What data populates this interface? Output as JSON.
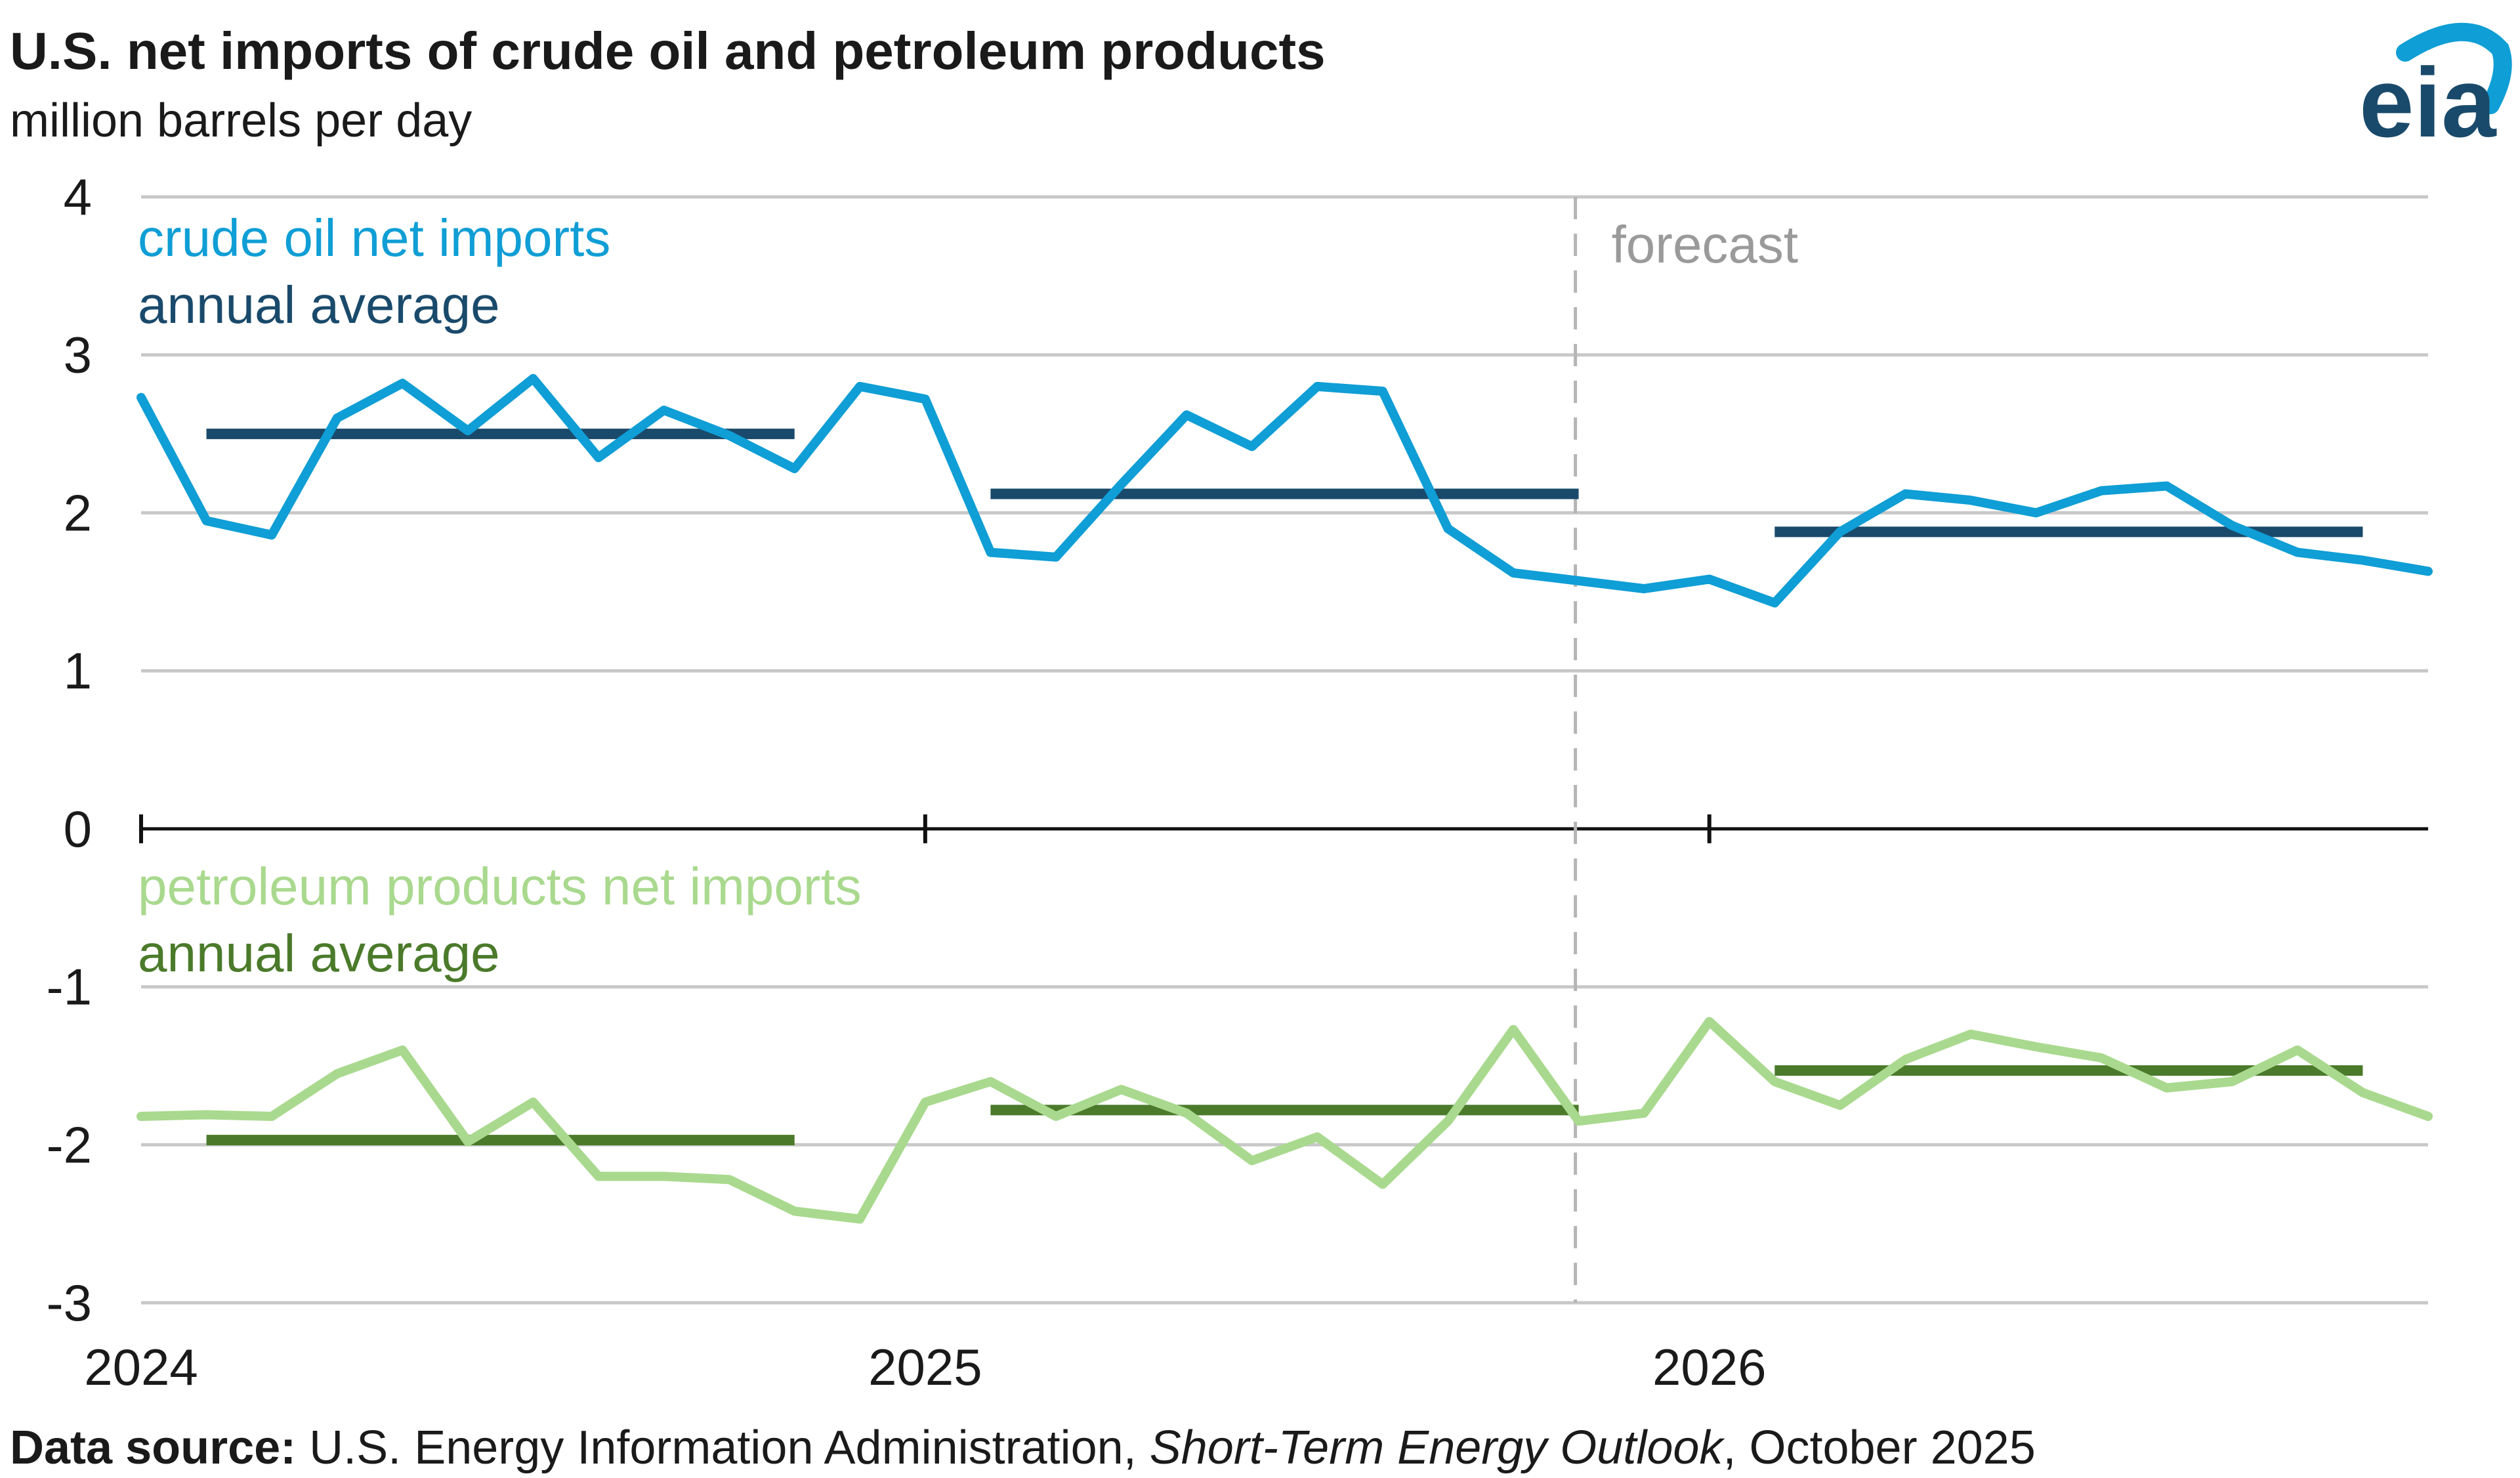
{
  "chart_data": {
    "type": "line",
    "title": "U.S. net imports of crude oil and petroleum products",
    "subtitle": "million barrels per day",
    "ylim": [
      -3,
      4
    ],
    "yticks": [
      4,
      3,
      2,
      1,
      0,
      -1,
      -2,
      -3
    ],
    "year_labels": [
      "2024",
      "2025",
      "2026"
    ],
    "forecast_label": "forecast",
    "forecast_start_month": 22,
    "series": [
      {
        "name": "crude oil net imports",
        "color": "#0f9ed5",
        "values": [
          2.73,
          1.95,
          1.86,
          2.6,
          2.82,
          2.52,
          2.85,
          2.35,
          2.65,
          2.49,
          2.28,
          2.8,
          2.72,
          1.75,
          1.72,
          2.18,
          2.62,
          2.42,
          2.8,
          2.77,
          1.9,
          1.62,
          1.57,
          1.52,
          1.58,
          1.43,
          1.88,
          2.12,
          2.08,
          2.0,
          2.14,
          2.17,
          1.92,
          1.75,
          1.7,
          1.63
        ]
      },
      {
        "name": "petroleum products net imports",
        "color": "#a9d98e",
        "values": [
          -1.82,
          -1.81,
          -1.82,
          -1.55,
          -1.4,
          -1.98,
          -1.73,
          -2.2,
          -2.2,
          -2.22,
          -2.42,
          -2.47,
          -1.73,
          -1.6,
          -1.82,
          -1.65,
          -1.8,
          -2.1,
          -1.95,
          -2.25,
          -1.85,
          -1.27,
          -1.85,
          -1.8,
          -1.22,
          -1.6,
          -1.75,
          -1.46,
          -1.3,
          -1.38,
          -1.45,
          -1.64,
          -1.6,
          -1.4,
          -1.67,
          -1.82
        ]
      }
    ],
    "annual_averages": [
      {
        "name": "annual average",
        "series": "crude oil net imports",
        "color": "#1a4a6b",
        "segments": [
          {
            "x0": 1,
            "x1": 10,
            "value": 2.5
          },
          {
            "x0": 13,
            "x1": 22,
            "value": 2.12
          },
          {
            "x0": 25,
            "x1": 34,
            "value": 1.88
          }
        ]
      },
      {
        "name": "annual average",
        "series": "petroleum products net imports",
        "color": "#4a7a2a",
        "segments": [
          {
            "x0": 1,
            "x1": 10,
            "value": -1.97
          },
          {
            "x0": 13,
            "x1": 22,
            "value": -1.78
          },
          {
            "x0": 25,
            "x1": 34,
            "value": -1.53
          }
        ]
      }
    ]
  },
  "source": {
    "label": "Data source:",
    "publisher": " U.S. Energy Information Administration, ",
    "publication": "Short-Term Energy Outlook",
    "date": ", October 2025"
  },
  "logo": {
    "text": "eia"
  }
}
